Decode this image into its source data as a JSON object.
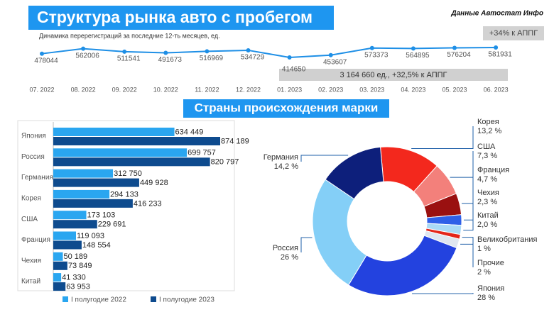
{
  "header": {
    "title": "Структура рынка авто с пробегом",
    "source": "Данные Автостат Инфо",
    "section_title": "Страны происхождения марки"
  },
  "chart_data": [
    {
      "type": "line",
      "subtitle": "Динамика перерегистраций за последние 12-ть месяцев, ед.",
      "annotation": "+34% к АППГ",
      "summary": "3 164 660 ед., +32,5% к АППГ",
      "color": "#1e8fe6",
      "categories": [
        "07. 2022",
        "08. 2022",
        "09. 2022",
        "10. 2022",
        "11. 2022",
        "12. 2022",
        "01. 2023",
        "02. 2023",
        "03. 2023",
        "04. 2023",
        "05. 2023",
        "06. 2023"
      ],
      "values": [
        478044,
        562006,
        511541,
        491673,
        516969,
        534729,
        414650,
        453607,
        573373,
        564895,
        576204,
        581931
      ]
    },
    {
      "type": "barh",
      "categories": [
        "Япония",
        "Россия",
        "Германия",
        "Корея",
        "США",
        "Франция",
        "Чехия",
        "Китай"
      ],
      "series": [
        {
          "name": "I полугодие 2022",
          "color": "#2aa6f0",
          "values": [
            634449,
            699757,
            312750,
            294133,
            173103,
            119093,
            50189,
            41330
          ],
          "value_labels": [
            "634 449",
            "699 757",
            "312 750",
            "294 133",
            "173 103",
            "119 093",
            "50 189",
            "41 330"
          ]
        },
        {
          "name": "I полугодие 2023",
          "color": "#0e4b8e",
          "values": [
            874189,
            820797,
            449928,
            416233,
            229691,
            148554,
            73849,
            63953
          ],
          "value_labels": [
            "874 189",
            "820 797",
            "449 928",
            "416 233",
            "229 691",
            "148 554",
            "73 849",
            "63 953"
          ]
        }
      ]
    },
    {
      "type": "pie",
      "categories": [
        "Корея",
        "США",
        "Франция",
        "Чехия",
        "Китай",
        "Великобритания",
        "Прочие",
        "Япония",
        "Россия",
        "Германия"
      ],
      "values": [
        13.2,
        7.3,
        4.7,
        2.3,
        2.0,
        1,
        2,
        28,
        26,
        14.2
      ],
      "value_labels": [
        "13,2 %",
        "7,3 %",
        "4,7 %",
        "2,3 %",
        "2,0 %",
        "1 %",
        "2 %",
        "28 %",
        "26 %",
        "14,2 %"
      ],
      "colors": [
        "#f3281d",
        "#f3807b",
        "#9a1010",
        "#2f5fe8",
        "#a9d9f6",
        "#e4251b",
        "#dfe6f0",
        "#2342df",
        "#84cff7",
        "#0d1f7b"
      ]
    }
  ]
}
